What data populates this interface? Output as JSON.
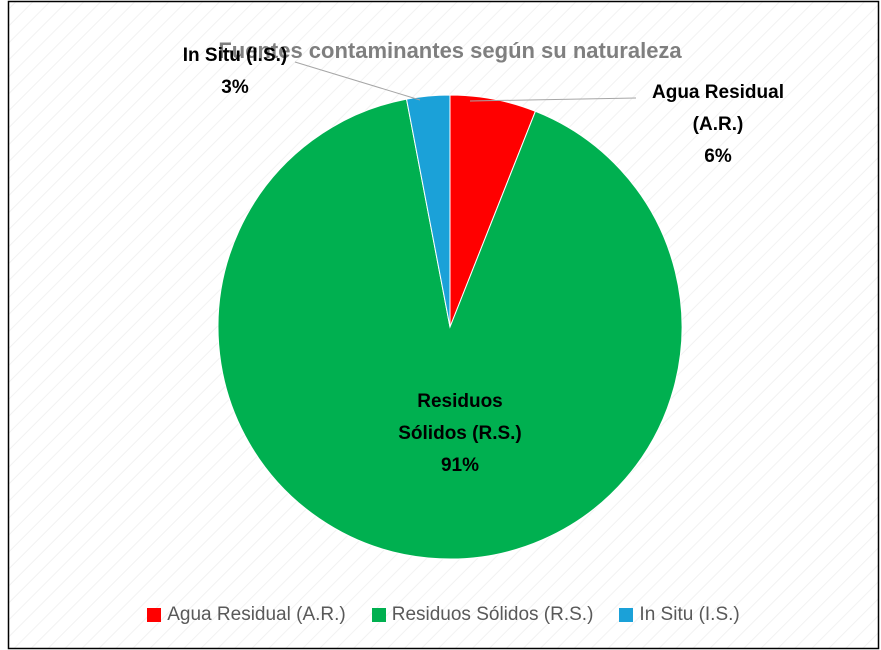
{
  "chart_data": {
    "type": "pie",
    "title": "Fuentes contaminantes según su naturaleza",
    "categories": [
      "Agua Residual (A.R.)",
      "Residuos Sólidos (R.S.)",
      "In Situ (I.S.)"
    ],
    "values": [
      6,
      91,
      3
    ],
    "value_labels": [
      "6%",
      "91%",
      "3%"
    ],
    "colors": [
      "#ff0000",
      "#00b050",
      "#1ba1d8"
    ],
    "legend": "bottom"
  }
}
